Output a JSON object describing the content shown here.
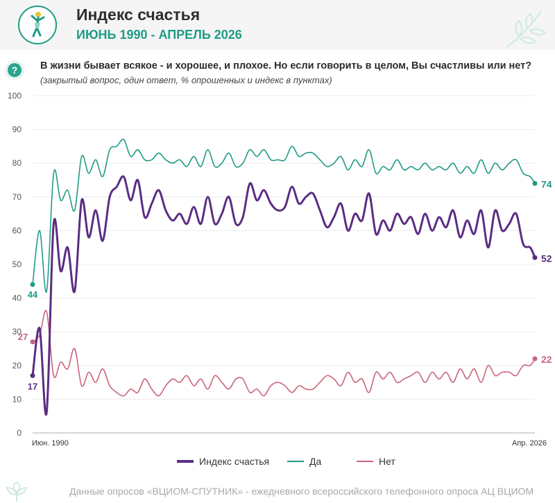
{
  "header": {
    "title": "Индекс счастья",
    "subtitle": "ИЮНЬ 1990 - АПРЕЛЬ 2026"
  },
  "question": {
    "text": "В жизни бывает всякое - и хорошее, и плохое. Но если говорить в целом, Вы счастливы  или нет?",
    "note": "(закрытый вопрос, один ответ, % опрошенных и индекс в пунктах)"
  },
  "footer": "Данные опросов «ВЦИОМ-СПУТНИК» - ежедневного всероссийского телефонного опроса АЦ ВЦИОМ",
  "colors": {
    "index": "#5a2d82",
    "yes": "#1f9b86",
    "no": "#c9657a",
    "title_accent": "#1f9b86"
  },
  "icons": {
    "logo": "dancing-person-icon",
    "question": "question-mark-icon",
    "decor": "leaf-icon",
    "footer": "flower-icon"
  },
  "chart_data": {
    "type": "line",
    "title": "Индекс счастья",
    "subtitle": "ИЮНЬ 1990 - АПРЕЛЬ 2026",
    "xlabel": "",
    "ylabel": "",
    "ylim": [
      0,
      100
    ],
    "yticks": [
      0,
      10,
      20,
      30,
      40,
      50,
      60,
      70,
      80,
      90,
      100
    ],
    "xlim": [
      "1990-06",
      "2026-04"
    ],
    "xtick_labels": [
      "Июн. 1990",
      "Апр. 2026"
    ],
    "grid": true,
    "legend_position": "bottom",
    "x": [
      "1990-06",
      "1990-12",
      "1991-06",
      "1991-12",
      "1992-06",
      "1992-12",
      "1993-06",
      "1993-12",
      "1994-06",
      "1994-12",
      "1995-06",
      "1995-12",
      "1996-06",
      "1996-12",
      "1997-06",
      "1997-12",
      "1998-06",
      "1998-12",
      "1999-06",
      "1999-12",
      "2000-06",
      "2000-12",
      "2001-06",
      "2001-12",
      "2002-06",
      "2002-12",
      "2003-06",
      "2003-12",
      "2004-06",
      "2004-12",
      "2005-06",
      "2005-12",
      "2006-06",
      "2006-12",
      "2007-06",
      "2007-12",
      "2008-06",
      "2008-12",
      "2009-06",
      "2009-12",
      "2010-06",
      "2010-12",
      "2011-06",
      "2011-12",
      "2012-06",
      "2012-12",
      "2013-06",
      "2013-12",
      "2014-06",
      "2014-12",
      "2015-06",
      "2015-12",
      "2016-06",
      "2016-12",
      "2017-06",
      "2017-12",
      "2018-06",
      "2018-12",
      "2019-06",
      "2019-12",
      "2020-06",
      "2020-12",
      "2021-06",
      "2021-12",
      "2022-06",
      "2022-12",
      "2023-06",
      "2023-12",
      "2024-06",
      "2024-12",
      "2025-06",
      "2025-12",
      "2026-04"
    ],
    "series": [
      {
        "name": "Индекс счастья",
        "key": "index",
        "values": [
          17,
          31,
          6,
          62,
          48,
          55,
          42,
          69,
          58,
          66,
          57,
          70,
          73,
          76,
          69,
          75,
          64,
          68,
          72,
          66,
          63,
          65,
          62,
          67,
          62,
          70,
          62,
          65,
          70,
          62,
          64,
          74,
          69,
          72,
          68,
          66,
          67,
          73,
          68,
          70,
          71,
          66,
          61,
          64,
          68,
          60,
          65,
          63,
          71,
          59,
          63,
          60,
          65,
          62,
          64,
          59,
          65,
          60,
          64,
          61,
          66,
          58,
          63,
          59,
          66,
          55,
          66,
          60,
          62,
          65,
          56,
          55,
          52
        ],
        "start_label": "17",
        "end_label": "52"
      },
      {
        "name": "Да",
        "key": "yes",
        "values": [
          44,
          60,
          42,
          77,
          69,
          72,
          66,
          82,
          77,
          81,
          76,
          84,
          85,
          87,
          82,
          84,
          81,
          81,
          83,
          81,
          80,
          81,
          79,
          82,
          79,
          84,
          79,
          80,
          83,
          79,
          80,
          84,
          82,
          84,
          81,
          81,
          81,
          85,
          82,
          83,
          83,
          81,
          79,
          80,
          82,
          78,
          81,
          79,
          84,
          77,
          79,
          78,
          81,
          78,
          79,
          78,
          80,
          78,
          79,
          78,
          80,
          77,
          79,
          77,
          81,
          77,
          80,
          78,
          80,
          81,
          77,
          76,
          74
        ],
        "start_label": "44",
        "end_label": "74"
      },
      {
        "name": "Нет",
        "key": "no",
        "values": [
          27,
          29,
          36,
          17,
          21,
          19,
          25,
          14,
          18,
          15,
          19,
          14,
          12,
          11,
          13,
          12,
          16,
          13,
          11,
          14,
          16,
          15,
          17,
          14,
          16,
          13,
          17,
          15,
          13,
          16,
          16,
          12,
          13,
          11,
          14,
          15,
          14,
          12,
          14,
          13,
          13,
          15,
          17,
          16,
          14,
          18,
          15,
          16,
          12,
          18,
          16,
          18,
          15,
          16,
          17,
          18,
          15,
          18,
          16,
          18,
          15,
          19,
          16,
          19,
          15,
          20,
          17,
          18,
          18,
          17,
          20,
          20,
          22
        ],
        "start_label": "27",
        "end_label": "22"
      }
    ]
  }
}
